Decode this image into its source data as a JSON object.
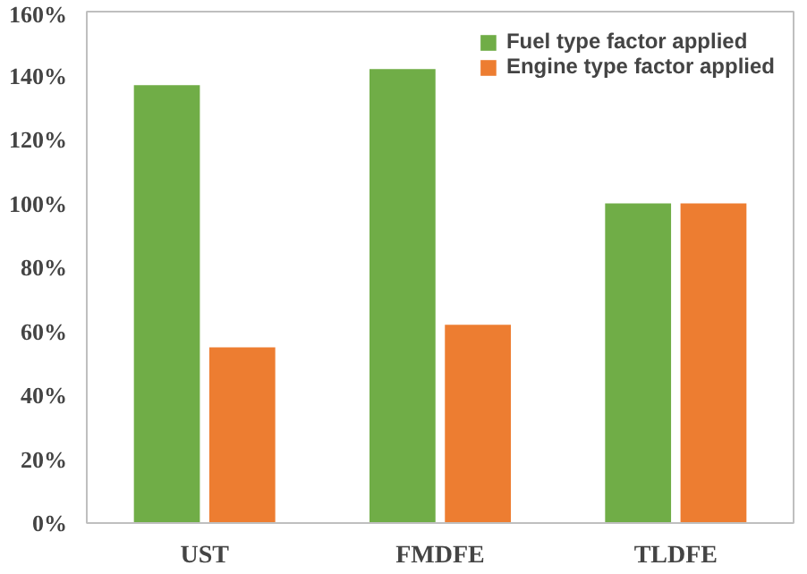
{
  "chart_data": {
    "type": "bar",
    "categories": [
      "UST",
      "FMDFE",
      "TLDFE"
    ],
    "series": [
      {
        "name": "Fuel type factor applied",
        "color": "#70ad47",
        "values": [
          137,
          142,
          100
        ]
      },
      {
        "name": "Engine type factor applied",
        "color": "#ed7d31",
        "values": [
          55,
          62,
          100
        ]
      }
    ],
    "ylim": [
      0,
      160
    ],
    "yticks": [
      {
        "value": 0,
        "label": "0%"
      },
      {
        "value": 20,
        "label": "20%"
      },
      {
        "value": 40,
        "label": "40%"
      },
      {
        "value": 60,
        "label": "60%"
      },
      {
        "value": 80,
        "label": "80%"
      },
      {
        "value": 100,
        "label": "100%"
      },
      {
        "value": 120,
        "label": "120%"
      },
      {
        "value": 140,
        "label": "140%"
      },
      {
        "value": 160,
        "label": "160%"
      }
    ],
    "legend": "top right"
  }
}
